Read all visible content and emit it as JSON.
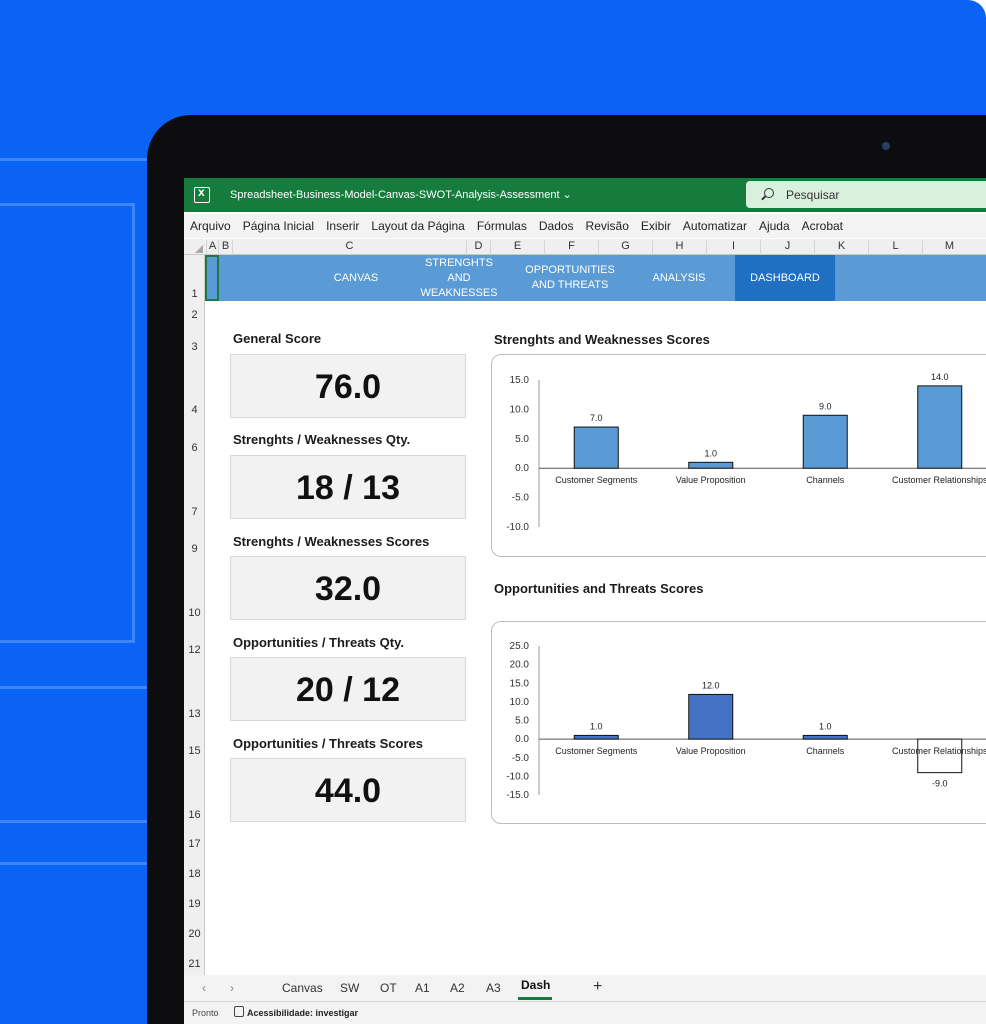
{
  "window": {
    "doc_title": "Spreadsheet-Business-Model-Canvas-SWOT-Analysis-Assessment ⌄",
    "search_placeholder": "Pesquisar"
  },
  "menu": [
    "Arquivo",
    "Página Inicial",
    "Inserir",
    "Layout da Página",
    "Fórmulas",
    "Dados",
    "Revisão",
    "Exibir",
    "Automatizar",
    "Ajuda",
    "Acrobat"
  ],
  "columns": [
    "A",
    "B",
    "C",
    "D",
    "E",
    "F",
    "G",
    "H",
    "I",
    "J",
    "K",
    "L",
    "M"
  ],
  "rows": [
    "1",
    "2",
    "3",
    "4",
    "6",
    "7",
    "9",
    "10",
    "12",
    "13",
    "15",
    "16",
    "17",
    "18",
    "19",
    "20",
    "21"
  ],
  "nav": {
    "canvas": "CANVAS",
    "sw": "STRENGHTS AND WEAKNESSES",
    "ot": "OPPORTUNITIES AND THREATS",
    "analysis": "ANALYSIS",
    "dashboard": "DASHBOARD"
  },
  "kpis": {
    "general_label": "General Score",
    "general_value": "76.0",
    "sw_qty_label": "Strenghts / Weaknesses Qty.",
    "sw_qty_value": "18 / 13",
    "sw_scores_label": "Strenghts / Weaknesses Scores",
    "sw_scores_value": "32.0",
    "ot_qty_label": "Opportunities / Threats Qty.",
    "ot_qty_value": "20 / 12",
    "ot_scores_label": "Opportunities / Threats Scores",
    "ot_scores_value": "44.0"
  },
  "chart_data": [
    {
      "type": "bar",
      "title": "Strenghts and Weaknesses Scores",
      "categories": [
        "Customer Segments",
        "Value Proposition",
        "Channels",
        "Customer Relationships"
      ],
      "values": [
        7.0,
        1.0,
        9.0,
        14.0
      ],
      "ylim": [
        -10,
        15
      ],
      "yticks": [
        "15.0",
        "10.0",
        "5.0",
        "0.0",
        "-5.0",
        "-10.0"
      ],
      "data_labels": [
        "7.0",
        "1.0",
        "9.0",
        "14.0"
      ],
      "bar_color": "#5b9bd5",
      "grid": false,
      "legend": "none"
    },
    {
      "type": "bar",
      "title": "Opportunities and Threats Scores",
      "categories": [
        "Customer Segments",
        "Value Proposition",
        "Channels",
        "Customer Relationships"
      ],
      "values": [
        1.0,
        12.0,
        1.0,
        -9.0
      ],
      "ylim": [
        -15,
        25
      ],
      "yticks": [
        "25.0",
        "20.0",
        "15.0",
        "10.0",
        "5.0",
        "0.0",
        "-5.0",
        "-10.0",
        "-15.0"
      ],
      "data_labels": [
        "1.0",
        "12.0",
        "1.0",
        "-9.0"
      ],
      "bar_color": "#4472c4",
      "negative_bar_color": "#ffffff",
      "grid": false,
      "legend": "none"
    }
  ],
  "sheet_tabs": [
    "Canvas",
    "SW",
    "OT",
    "A1",
    "A2",
    "A3",
    "Dash"
  ],
  "add_sheet": "+",
  "tab_nav": {
    "prev": "‹",
    "next": "›"
  },
  "status": {
    "ready": "Pronto",
    "accessibility": "Acessibilidade: investigar"
  },
  "colors": {
    "brand_bg": "#0b63f6",
    "excel_green": "#167c3e",
    "nav_band": "#5b9bd5",
    "nav_active": "#1f6fc2"
  }
}
